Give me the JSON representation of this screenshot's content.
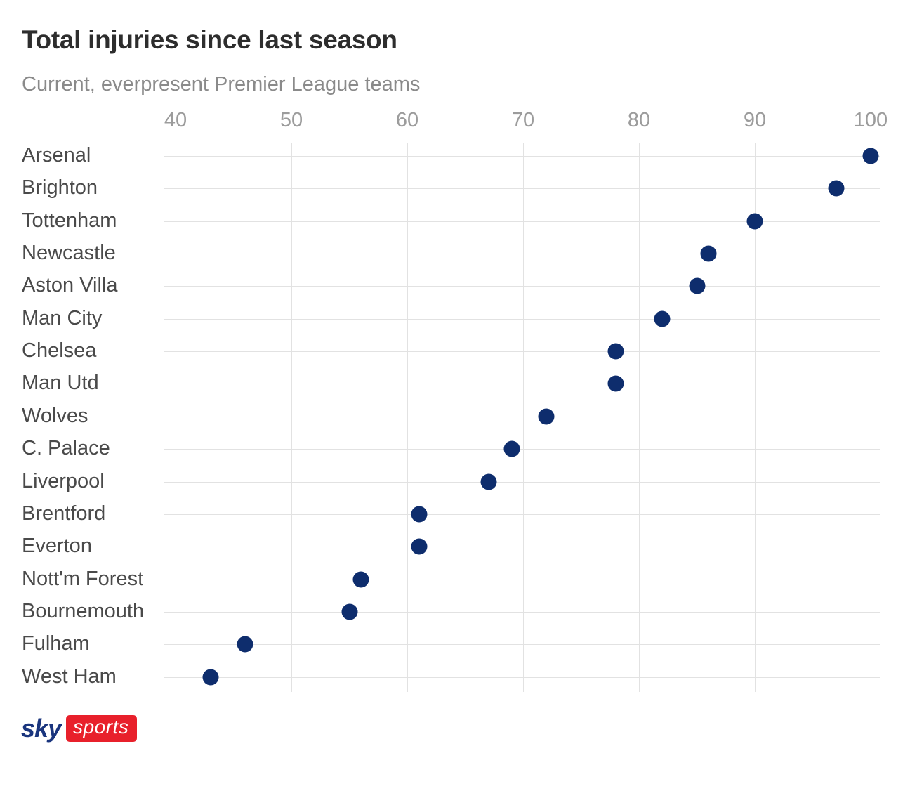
{
  "header": {
    "title": "Total injuries since last season",
    "subtitle": "Current, everpresent Premier League teams"
  },
  "chart_data": {
    "type": "scatter",
    "variant": "horizontal-dot-plot",
    "title": "Total injuries since last season",
    "subtitle": "Current, everpresent Premier League teams",
    "xlabel": "",
    "ylabel": "",
    "categories": [
      "Arsenal",
      "Brighton",
      "Tottenham",
      "Newcastle",
      "Aston Villa",
      "Man City",
      "Chelsea",
      "Man Utd",
      "Wolves",
      "C. Palace",
      "Liverpool",
      "Brentford",
      "Everton",
      "Nott'm Forest",
      "Bournemouth",
      "Fulham",
      "West Ham"
    ],
    "values": [
      100,
      97,
      90,
      86,
      85,
      82,
      78,
      78,
      72,
      69,
      67,
      61,
      61,
      56,
      55,
      46,
      43
    ],
    "x_ticks": [
      40,
      50,
      60,
      70,
      80,
      90,
      100
    ],
    "xlim": [
      39,
      101.3
    ],
    "grid": "both",
    "legend": "none",
    "dot_color": "#0e2d6d",
    "gridline_color": "#e2e2e2"
  },
  "footer": {
    "logo_sky": "sky",
    "logo_sports": "sports",
    "logo_red": "#e8202b",
    "logo_navy": "#1a357e"
  },
  "colors": {
    "title": "#2d2d2d",
    "subtitle": "#8a8a8a",
    "tick_label": "#9c9c9c",
    "team_label": "#4a4a4a"
  }
}
